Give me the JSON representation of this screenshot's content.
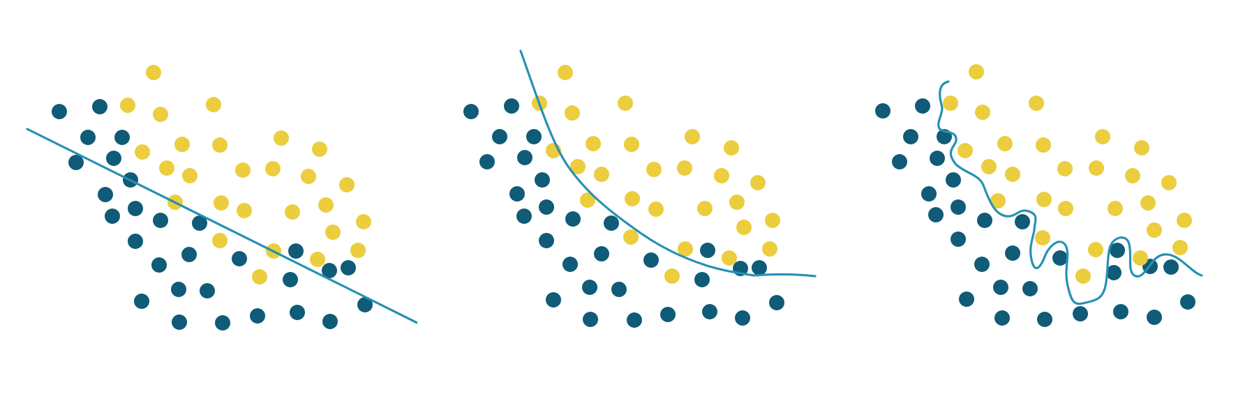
{
  "colors": {
    "class_a": "#0f5b78",
    "class_b": "#ebcd3e",
    "boundary": "#2591b2",
    "background": "#ffffff"
  },
  "panels": [
    {
      "boundary_kind": "linear",
      "points_a": [
        [
          85,
          160
        ],
        [
          143,
          153
        ],
        [
          126,
          197
        ],
        [
          175,
          197
        ],
        [
          109,
          233
        ],
        [
          163,
          227
        ],
        [
          187,
          258
        ],
        [
          151,
          279
        ],
        [
          194,
          299
        ],
        [
          161,
          310
        ],
        [
          230,
          316
        ],
        [
          286,
          320
        ],
        [
          194,
          346
        ],
        [
          228,
          380
        ],
        [
          271,
          365
        ],
        [
          343,
          371
        ],
        [
          424,
          360
        ],
        [
          416,
          401
        ],
        [
          256,
          415
        ],
        [
          297,
          417
        ],
        [
          472,
          388
        ],
        [
          499,
          384
        ],
        [
          523,
          437
        ],
        [
          203,
          432
        ],
        [
          257,
          462
        ],
        [
          319,
          463
        ],
        [
          369,
          453
        ],
        [
          426,
          448
        ],
        [
          473,
          461
        ]
      ],
      "points_b": [
        [
          220,
          104
        ],
        [
          183,
          151
        ],
        [
          230,
          164
        ],
        [
          306,
          150
        ],
        [
          204,
          218
        ],
        [
          261,
          207
        ],
        [
          315,
          208
        ],
        [
          403,
          198
        ],
        [
          458,
          214
        ],
        [
          239,
          241
        ],
        [
          272,
          252
        ],
        [
          348,
          244
        ],
        [
          391,
          242
        ],
        [
          442,
          253
        ],
        [
          497,
          265
        ],
        [
          251,
          290
        ],
        [
          317,
          291
        ],
        [
          350,
          302
        ],
        [
          419,
          304
        ],
        [
          467,
          294
        ],
        [
          521,
          318
        ],
        [
          477,
          333
        ],
        [
          315,
          345
        ],
        [
          392,
          360
        ],
        [
          455,
          372
        ],
        [
          513,
          359
        ],
        [
          372,
          397
        ]
      ]
    },
    {
      "boundary_kind": "smooth-curve",
      "points_a": [
        [
          675,
          160
        ],
        [
          733,
          152
        ],
        [
          716,
          196
        ],
        [
          765,
          196
        ],
        [
          698,
          232
        ],
        [
          752,
          226
        ],
        [
          777,
          258
        ],
        [
          741,
          278
        ],
        [
          783,
          297
        ],
        [
          751,
          310
        ],
        [
          821,
          314
        ],
        [
          876,
          320
        ],
        [
          783,
          345
        ],
        [
          817,
          379
        ],
        [
          862,
          364
        ],
        [
          933,
          373
        ],
        [
          1014,
          359
        ],
        [
          1006,
          401
        ],
        [
          845,
          412
        ],
        [
          887,
          415
        ],
        [
          1061,
          385
        ],
        [
          1088,
          384
        ],
        [
          1113,
          434
        ],
        [
          793,
          430
        ],
        [
          846,
          458
        ],
        [
          909,
          459
        ],
        [
          957,
          451
        ],
        [
          1017,
          447
        ],
        [
          1064,
          456
        ]
      ],
      "points_b": [
        [
          810,
          104
        ],
        [
          773,
          148
        ],
        [
          820,
          162
        ],
        [
          896,
          148
        ],
        [
          793,
          216
        ],
        [
          850,
          206
        ],
        [
          905,
          207
        ],
        [
          992,
          196
        ],
        [
          1048,
          212
        ],
        [
          828,
          239
        ],
        [
          862,
          250
        ],
        [
          937,
          243
        ],
        [
          981,
          241
        ],
        [
          1034,
          252
        ],
        [
          1086,
          262
        ],
        [
          842,
          287
        ],
        [
          906,
          285
        ],
        [
          940,
          300
        ],
        [
          1010,
          299
        ],
        [
          1056,
          290
        ],
        [
          1107,
          316
        ],
        [
          1066,
          326
        ],
        [
          904,
          340
        ],
        [
          982,
          357
        ],
        [
          1045,
          370
        ],
        [
          1103,
          357
        ],
        [
          963,
          396
        ]
      ]
    },
    {
      "boundary_kind": "overfit-wiggly-curve",
      "points_a": [
        [
          1265,
          159
        ],
        [
          1322,
          152
        ],
        [
          1305,
          196
        ],
        [
          1353,
          196
        ],
        [
          1289,
          232
        ],
        [
          1343,
          227
        ],
        [
          1366,
          258
        ],
        [
          1331,
          278
        ],
        [
          1373,
          297
        ],
        [
          1341,
          308
        ],
        [
          1411,
          316
        ],
        [
          1465,
          318
        ],
        [
          1373,
          343
        ],
        [
          1407,
          379
        ],
        [
          1451,
          363
        ],
        [
          1519,
          370
        ],
        [
          1601,
          359
        ],
        [
          1596,
          391
        ],
        [
          1434,
          412
        ],
        [
          1476,
          414
        ],
        [
          1648,
          382
        ],
        [
          1678,
          383
        ],
        [
          1702,
          433
        ],
        [
          1385,
          429
        ],
        [
          1436,
          456
        ],
        [
          1497,
          458
        ],
        [
          1548,
          450
        ],
        [
          1606,
          447
        ],
        [
          1654,
          455
        ]
      ],
      "points_b": [
        [
          1399,
          103
        ],
        [
          1362,
          148
        ],
        [
          1408,
          161
        ],
        [
          1485,
          148
        ],
        [
          1383,
          216
        ],
        [
          1440,
          206
        ],
        [
          1495,
          208
        ],
        [
          1580,
          196
        ],
        [
          1636,
          212
        ],
        [
          1417,
          239
        ],
        [
          1451,
          250
        ],
        [
          1526,
          242
        ],
        [
          1571,
          241
        ],
        [
          1623,
          252
        ],
        [
          1675,
          262
        ],
        [
          1430,
          288
        ],
        [
          1496,
          286
        ],
        [
          1527,
          299
        ],
        [
          1598,
          299
        ],
        [
          1645,
          291
        ],
        [
          1697,
          316
        ],
        [
          1654,
          330
        ],
        [
          1494,
          341
        ],
        [
          1570,
          358
        ],
        [
          1634,
          370
        ],
        [
          1691,
          355
        ],
        [
          1552,
          396
        ]
      ]
    }
  ]
}
